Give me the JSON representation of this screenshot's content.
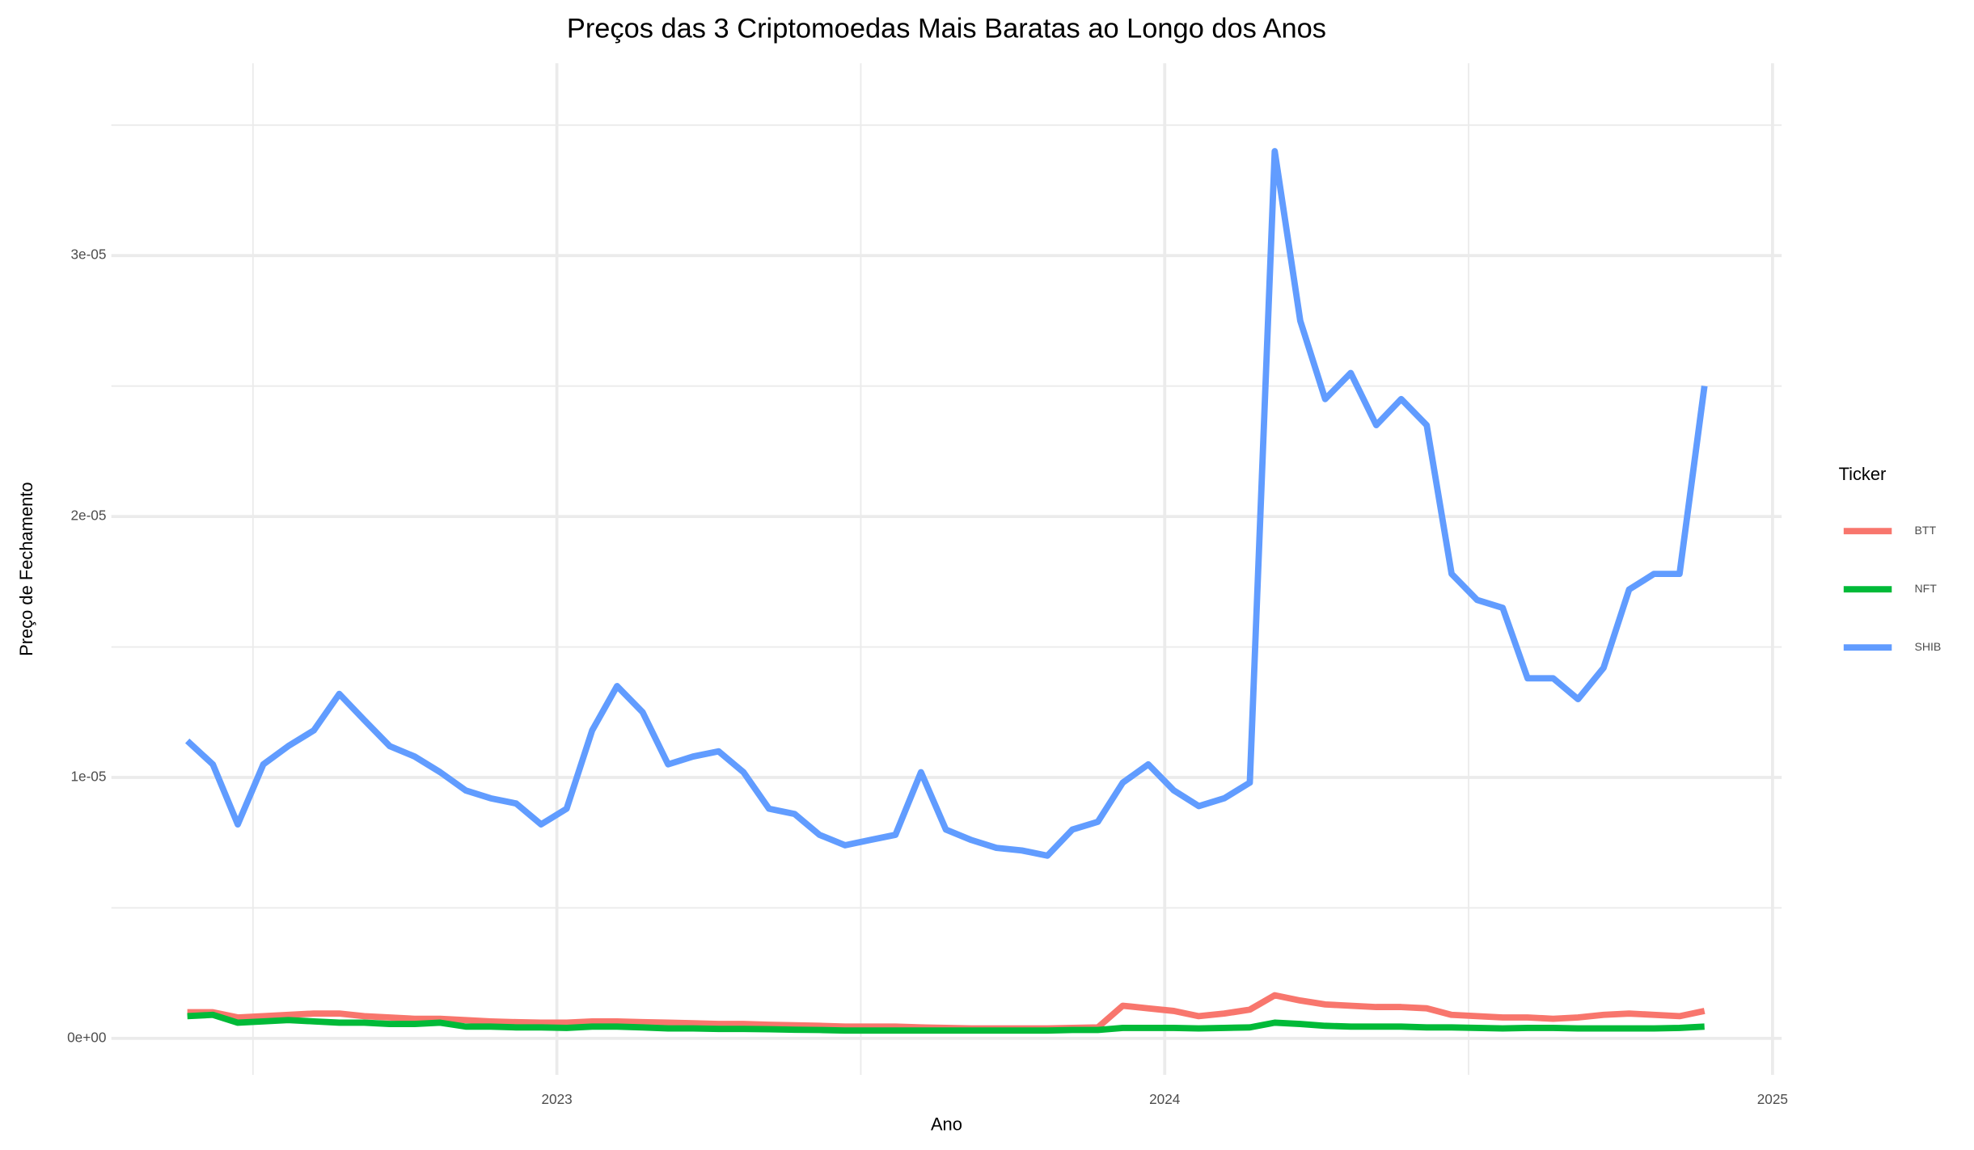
{
  "chart_data": {
    "type": "line",
    "title": "Preços das 3 Criptomoedas Mais Baratas ao Longo dos Anos",
    "x_label": "Ano",
    "y_label": "Preço de Fechamento",
    "legend_title": "Ticker",
    "legend": "right",
    "grid": true,
    "xlim": [
      2022.267,
      2025.015
    ],
    "xticks": [
      2023,
      2024,
      2025
    ],
    "ylim": [
      -1.4e-06,
      3.737e-05
    ],
    "yticks": [
      {
        "value": 0,
        "label": "0e+00"
      },
      {
        "value": 1e-05,
        "label": "1e-05"
      },
      {
        "value": 2e-05,
        "label": "2e-05"
      },
      {
        "value": 3e-05,
        "label": "3e-05"
      }
    ],
    "x": [
      2022.392,
      2022.434,
      2022.475,
      2022.517,
      2022.558,
      2022.6,
      2022.642,
      2022.683,
      2022.725,
      2022.766,
      2022.808,
      2022.85,
      2022.891,
      2022.933,
      2022.974,
      2023.016,
      2023.058,
      2023.099,
      2023.141,
      2023.183,
      2023.224,
      2023.266,
      2023.307,
      2023.349,
      2023.391,
      2023.432,
      2023.474,
      2023.515,
      2023.557,
      2023.599,
      2023.64,
      2023.682,
      2023.723,
      2023.765,
      2023.807,
      2023.848,
      2023.89,
      2023.931,
      2023.973,
      2024.015,
      2024.056,
      2024.098,
      2024.14,
      2024.181,
      2024.223,
      2024.264,
      2024.306,
      2024.348,
      2024.389,
      2024.431,
      2024.472,
      2024.514,
      2024.556,
      2024.597,
      2024.639,
      2024.68,
      2024.722,
      2024.764,
      2024.805,
      2024.847,
      2024.888
    ],
    "series": [
      {
        "name": "BTT",
        "color": "#F8766D",
        "values": [
          1e-06,
          1e-06,
          8e-07,
          8.5e-07,
          9e-07,
          9.5e-07,
          9.5e-07,
          8.5e-07,
          8e-07,
          7.5e-07,
          7.5e-07,
          7e-07,
          6.5e-07,
          6.2e-07,
          6e-07,
          6e-07,
          6.5e-07,
          6.5e-07,
          6.2e-07,
          6e-07,
          5.8e-07,
          5.5e-07,
          5.5e-07,
          5.2e-07,
          5e-07,
          4.8e-07,
          4.5e-07,
          4.5e-07,
          4.5e-07,
          4.2e-07,
          4e-07,
          3.8e-07,
          3.8e-07,
          3.8e-07,
          3.8e-07,
          4e-07,
          4.2e-07,
          1.25e-06,
          1.15e-06,
          1.05e-06,
          8.5e-07,
          9.5e-07,
          1.1e-06,
          1.65e-06,
          1.45e-06,
          1.3e-06,
          1.25e-06,
          1.2e-06,
          1.2e-06,
          1.15e-06,
          9e-07,
          8.5e-07,
          8e-07,
          8e-07,
          7.5e-07,
          8e-07,
          9e-07,
          9.5e-07,
          9e-07,
          8.5e-07,
          1.05e-06
        ]
      },
      {
        "name": "NFT",
        "color": "#00BA38",
        "values": [
          8.5e-07,
          9e-07,
          6e-07,
          6.5e-07,
          7e-07,
          6.5e-07,
          6e-07,
          6e-07,
          5.5e-07,
          5.5e-07,
          6e-07,
          4.5e-07,
          4.5e-07,
          4.2e-07,
          4.2e-07,
          4e-07,
          4.5e-07,
          4.5e-07,
          4.2e-07,
          3.8e-07,
          3.8e-07,
          3.6e-07,
          3.6e-07,
          3.5e-07,
          3.3e-07,
          3.2e-07,
          3e-07,
          3e-07,
          3e-07,
          3e-07,
          3e-07,
          3e-07,
          3e-07,
          3e-07,
          3e-07,
          3.2e-07,
          3.2e-07,
          4e-07,
          4e-07,
          4e-07,
          3.8e-07,
          4e-07,
          4.2e-07,
          6e-07,
          5.5e-07,
          4.8e-07,
          4.5e-07,
          4.5e-07,
          4.5e-07,
          4.2e-07,
          4.2e-07,
          4e-07,
          3.8e-07,
          4e-07,
          4e-07,
          3.8e-07,
          3.8e-07,
          3.8e-07,
          3.8e-07,
          4e-07,
          4.5e-07
        ]
      },
      {
        "name": "SHIB",
        "color": "#619CFF",
        "values": [
          1.14e-05,
          1.05e-05,
          8.2e-06,
          1.05e-05,
          1.12e-05,
          1.18e-05,
          1.32e-05,
          1.22e-05,
          1.12e-05,
          1.08e-05,
          1.02e-05,
          9.5e-06,
          9.2e-06,
          9e-06,
          8.2e-06,
          8.8e-06,
          1.18e-05,
          1.35e-05,
          1.25e-05,
          1.05e-05,
          1.08e-05,
          1.1e-05,
          1.02e-05,
          8.8e-06,
          8.6e-06,
          7.8e-06,
          7.4e-06,
          7.6e-06,
          7.8e-06,
          1.02e-05,
          8e-06,
          7.6e-06,
          7.3e-06,
          7.2e-06,
          7e-06,
          8e-06,
          8.3e-06,
          9.8e-06,
          1.05e-05,
          9.5e-06,
          8.9e-06,
          9.2e-06,
          9.8e-06,
          3.4e-05,
          2.75e-05,
          2.45e-05,
          2.55e-05,
          2.35e-05,
          2.45e-05,
          2.35e-05,
          1.78e-05,
          1.68e-05,
          1.65e-05,
          1.38e-05,
          1.38e-05,
          1.3e-05,
          1.42e-05,
          1.72e-05,
          1.78e-05,
          1.78e-05,
          2.5e-05
        ]
      }
    ]
  }
}
